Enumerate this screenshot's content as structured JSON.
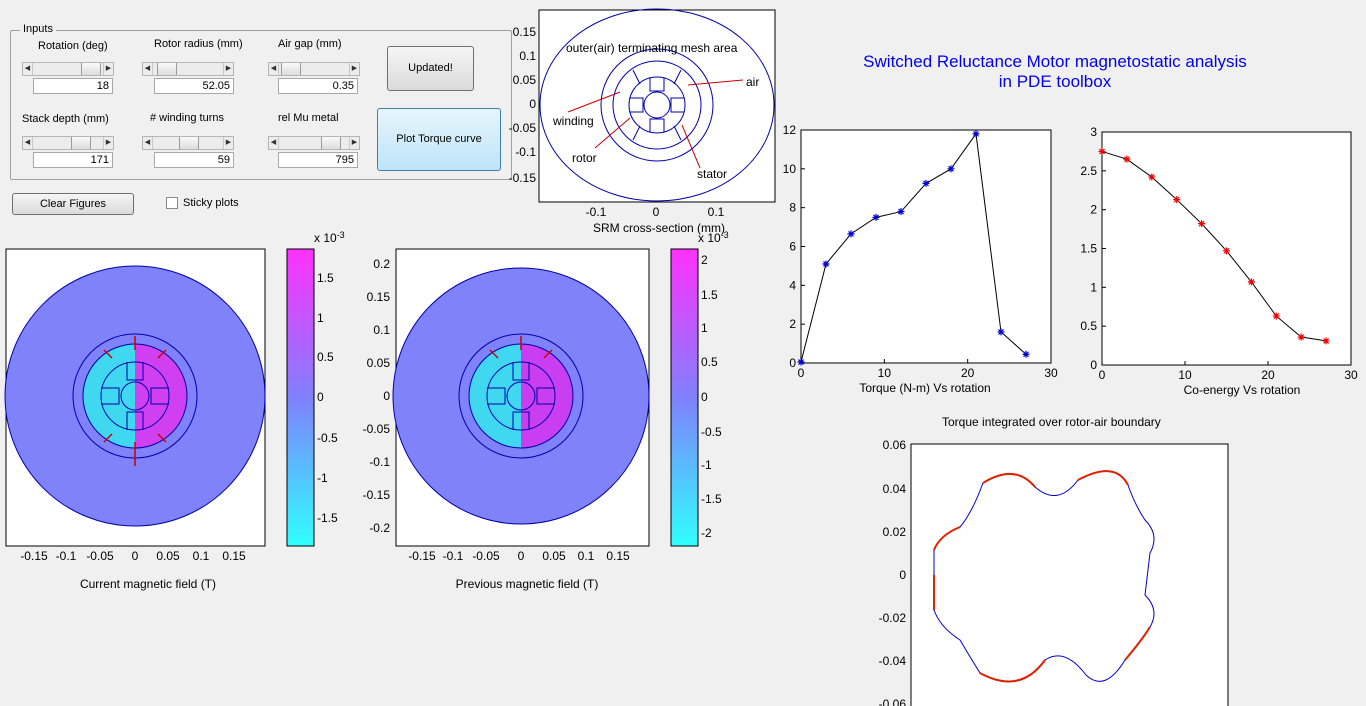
{
  "inputs": {
    "group_label": "Inputs",
    "rotation": {
      "label": "Rotation (deg)",
      "value": "18"
    },
    "rotor_radius": {
      "label": "Rotor radius (mm)",
      "value": "52.05"
    },
    "air_gap": {
      "label": "Air gap (mm)",
      "value": "0.35"
    },
    "stack_depth": {
      "label": "Stack depth (mm)",
      "value": "171"
    },
    "winding_turns": {
      "label": "# winding turns",
      "value": "59"
    },
    "rel_mu": {
      "label": "rel Mu metal",
      "value": "795"
    }
  },
  "buttons": {
    "updated": "Updated!",
    "plot_torque": "Plot Torque curve",
    "clear_figures": "Clear Figures"
  },
  "sticky": {
    "label": "Sticky plots",
    "checked": false
  },
  "title": {
    "line1": "Switched Reluctance Motor magnetostatic analysis",
    "line2": "in PDE toolbox"
  },
  "cross_section": {
    "xlabel": "SRM cross-section (mm)",
    "label_outer": "outer(air) terminating mesh area",
    "label_air": "air",
    "label_winding": "winding",
    "label_rotor": "rotor",
    "label_stator": "stator",
    "yticks": [
      "0.15",
      "0.1",
      "0.05",
      "0",
      "-0.05",
      "-0.1",
      "-0.15"
    ],
    "xticks": [
      "-0.1",
      "0",
      "0.1"
    ]
  },
  "current_field": {
    "xlabel": "Current magnetic field (T)",
    "xticks": [
      "-0.15",
      "-0.1",
      "-0.05",
      "0",
      "0.05",
      "0.1",
      "0.15"
    ],
    "colorbar_ticks": [
      "1.5",
      "1",
      "0.5",
      "0",
      "-0.5",
      "-1",
      "-1.5"
    ],
    "colorbar_exp": "x 10",
    "colorbar_exp_power": "-3"
  },
  "previous_field": {
    "xlabel": "Previous magnetic field (T)",
    "xticks": [
      "-0.15",
      "-0.1",
      "-0.05",
      "0",
      "0.05",
      "0.1",
      "0.15"
    ],
    "yticks": [
      "0.2",
      "0.15",
      "0.1",
      "0.05",
      "0",
      "-0.05",
      "-0.1",
      "-0.15",
      "-0.2"
    ],
    "colorbar_ticks": [
      "2",
      "1.5",
      "1",
      "0.5",
      "0",
      "-0.5",
      "-1",
      "-1.5",
      "-2"
    ],
    "colorbar_exp": "x 10",
    "colorbar_exp_power": "-3"
  },
  "torque_plot": {
    "xlabel": "Torque  (N-m) Vs rotation"
  },
  "coenergy_plot": {
    "xlabel": "Co-energy Vs rotation"
  },
  "boundary_plot": {
    "title": "Torque integrated over rotor-air boundary",
    "yticks": [
      "0.06",
      "0.04",
      "0.02",
      "0",
      "-0.02",
      "-0.04",
      "-0.06"
    ]
  },
  "chart_data": [
    {
      "type": "line",
      "xlabel": "Torque  (N-m) Vs rotation",
      "x": [
        0,
        3,
        6,
        9,
        12,
        15,
        18,
        21,
        24,
        27
      ],
      "y": [
        0.05,
        5.1,
        6.65,
        7.5,
        7.8,
        9.25,
        10.0,
        11.8,
        1.6,
        0.45
      ],
      "xlim": [
        0,
        30
      ],
      "ylim": [
        0,
        12
      ],
      "xticks": [
        0,
        10,
        20,
        30
      ],
      "yticks": [
        0,
        2,
        4,
        6,
        8,
        10,
        12
      ],
      "marker_color": "#0000cc"
    },
    {
      "type": "line",
      "xlabel": "Co-energy Vs rotation",
      "x": [
        0,
        3,
        6,
        9,
        12,
        15,
        18,
        21,
        24,
        27
      ],
      "y": [
        2.75,
        2.65,
        2.42,
        2.13,
        1.82,
        1.47,
        1.07,
        0.63,
        0.36,
        0.31
      ],
      "xlim": [
        0,
        30
      ],
      "ylim": [
        0,
        3
      ],
      "xticks": [
        0,
        10,
        20,
        30
      ],
      "yticks": [
        0,
        0.5,
        1,
        1.5,
        2,
        2.5,
        3
      ],
      "marker_color": "#ee0000"
    }
  ]
}
